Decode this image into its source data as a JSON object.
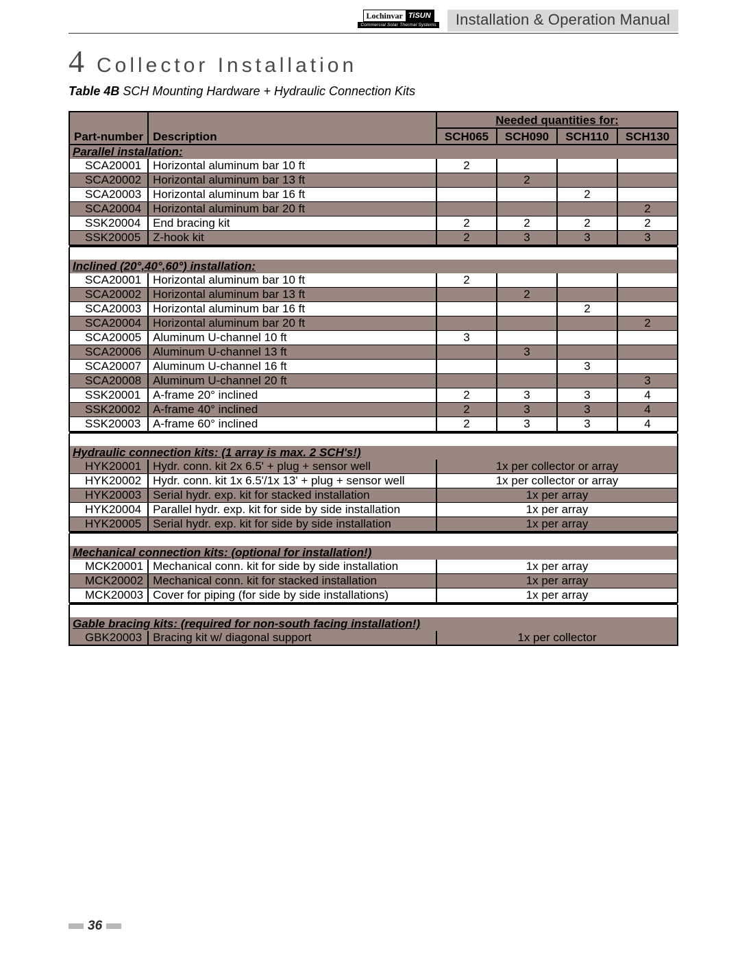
{
  "header": {
    "logo_left": "Lochinvar",
    "logo_right": "TiSUN",
    "logo_sub": "Commercial Solar Thermal Systems",
    "doc_title": "Installation & Operation Manual"
  },
  "section": {
    "number": "4",
    "title": "Collector Installation"
  },
  "table": {
    "caption_label": "Table 4B",
    "caption_text": "SCH Mounting Hardware + Hydraulic Connection Kits",
    "col_pn": "Part-number",
    "col_desc": "Description",
    "col_needed": "Needed quantities for:",
    "qcols": [
      "SCH065",
      "SCH090",
      "SCH110",
      "SCH130"
    ],
    "groups": [
      {
        "label": "Parallel installation:",
        "rows": [
          {
            "pn": "SCA20001",
            "desc": "Horizontal aluminum bar 10 ft",
            "q": [
              "2",
              "",
              "",
              ""
            ],
            "shade": false
          },
          {
            "pn": "SCA20002",
            "desc": "Horizontal aluminum bar 13 ft",
            "q": [
              "",
              "2",
              "",
              ""
            ],
            "shade": true
          },
          {
            "pn": "SCA20003",
            "desc": "Horizontal aluminum bar 16 ft",
            "q": [
              "",
              "",
              "2",
              ""
            ],
            "shade": false
          },
          {
            "pn": "SCA20004",
            "desc": "Horizontal aluminum bar 20 ft",
            "q": [
              "",
              "",
              "",
              "2"
            ],
            "shade": true
          },
          {
            "pn": "SSK20004",
            "desc": "End bracing kit",
            "q": [
              "2",
              "2",
              "2",
              "2"
            ],
            "shade": false
          },
          {
            "pn": "SSK20005",
            "desc": "Z-hook kit",
            "q": [
              "2",
              "3",
              "3",
              "3"
            ],
            "shade": true
          }
        ]
      },
      {
        "label": "Inclined (20°,40°,60°) installation:",
        "rows": [
          {
            "pn": "SCA20001",
            "desc": "Horizontal aluminum bar 10 ft",
            "q": [
              "2",
              "",
              "",
              ""
            ],
            "shade": false
          },
          {
            "pn": "SCA20002",
            "desc": "Horizontal aluminum bar 13 ft",
            "q": [
              "",
              "2",
              "",
              ""
            ],
            "shade": true
          },
          {
            "pn": "SCA20003",
            "desc": "Horizontal aluminum bar 16 ft",
            "q": [
              "",
              "",
              "2",
              ""
            ],
            "shade": false
          },
          {
            "pn": "SCA20004",
            "desc": "Horizontal aluminum bar 20 ft",
            "q": [
              "",
              "",
              "",
              "2"
            ],
            "shade": true
          },
          {
            "pn": "SCA20005",
            "desc": "Aluminum U-channel 10 ft",
            "q": [
              "3",
              "",
              "",
              ""
            ],
            "shade": false
          },
          {
            "pn": "SCA20006",
            "desc": "Aluminum U-channel 13 ft",
            "q": [
              "",
              "3",
              "",
              ""
            ],
            "shade": true
          },
          {
            "pn": "SCA20007",
            "desc": "Aluminum U-channel 16 ft",
            "q": [
              "",
              "",
              "3",
              ""
            ],
            "shade": false
          },
          {
            "pn": "SCA20008",
            "desc": "Aluminum U-channel 20 ft",
            "q": [
              "",
              "",
              "",
              "3"
            ],
            "shade": true
          },
          {
            "pn": "SSK20001",
            "desc": "A-frame 20° inclined",
            "q": [
              "2",
              "3",
              "3",
              "4"
            ],
            "shade": false
          },
          {
            "pn": "SSK20002",
            "desc": "A-frame 40° inclined",
            "q": [
              "2",
              "3",
              "3",
              "4"
            ],
            "shade": true
          },
          {
            "pn": "SSK20003",
            "desc": "A-frame 60° inclined",
            "q": [
              "2",
              "3",
              "3",
              "4"
            ],
            "shade": false
          }
        ]
      },
      {
        "label": "Hydraulic connection kits: (1 array is max. 2 SCH's!)",
        "rows": [
          {
            "pn": "HYK20001",
            "desc": "Hydr. conn. kit 2x 6.5' + plug + sensor well",
            "note": "1x per collector or array",
            "shade": true
          },
          {
            "pn": "HYK20002",
            "desc": "Hydr. conn. kit 1x 6.5'/1x 13' + plug + sensor well",
            "note": "1x per collector or array",
            "shade": false
          },
          {
            "pn": "HYK20003",
            "desc": "Serial hydr. exp. kit for stacked installation",
            "note": "1x per array",
            "shade": true
          },
          {
            "pn": "HYK20004",
            "desc": "Parallel hydr. exp. kit for side by side installation",
            "note": "1x per array",
            "shade": false
          },
          {
            "pn": "HYK20005",
            "desc": "Serial hydr. exp. kit for side by side installation",
            "note": "1x per array",
            "shade": true
          }
        ]
      },
      {
        "label": "Mechanical connection kits: (optional for installation!)",
        "rows": [
          {
            "pn": "MCK20001",
            "desc": "Mechanical conn. kit for side by side installation",
            "note": "1x per array",
            "shade": false
          },
          {
            "pn": "MCK20002",
            "desc": "Mechanical conn. kit for stacked installation",
            "note": "1x per array",
            "shade": true
          },
          {
            "pn": "MCK20003",
            "desc": "Cover for piping (for side by side installations)",
            "note": "1x per array",
            "shade": false
          }
        ]
      },
      {
        "label": "Gable bracing kits: (required for non-south facing installation!)",
        "rows": [
          {
            "pn": "GBK20003",
            "desc": "Bracing kit w/ diagonal support",
            "note": "1x per collector",
            "shade": true,
            "last": true
          }
        ]
      }
    ]
  },
  "page_number": "36",
  "colors": {
    "shade": "#9b8781",
    "header_grey": "#d9d9d9",
    "text_grey": "#4a4a4a"
  }
}
